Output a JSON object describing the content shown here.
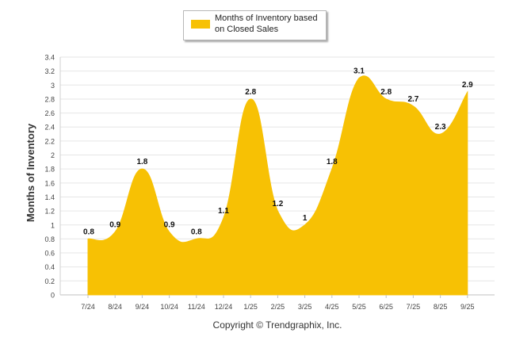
{
  "chart_data": {
    "type": "area",
    "title": "",
    "xlabel": "",
    "ylabel": "Months of Inventory",
    "categories": [
      "7/24",
      "8/24",
      "9/24",
      "10/24",
      "11/24",
      "12/24",
      "1/25",
      "2/25",
      "3/25",
      "4/25",
      "5/25",
      "6/25",
      "7/25",
      "8/25",
      "9/25"
    ],
    "series": [
      {
        "name": "Months of Inventory based on Closed Sales",
        "values": [
          0.8,
          0.9,
          1.8,
          0.9,
          0.8,
          1.1,
          2.8,
          1.2,
          1,
          1.8,
          3.1,
          2.8,
          2.7,
          2.3,
          2.9
        ],
        "labels": [
          "0.8",
          "0.9",
          "1.8",
          "0.9",
          "0.8",
          "1.1",
          "2.8",
          "1.2",
          "1",
          "1.8",
          "3.1",
          "2.8",
          "2.7",
          "2.3",
          "2.9"
        ],
        "color": "#F7C104"
      }
    ],
    "ylim": [
      0,
      3.4
    ],
    "yticks": [
      0,
      0.2,
      0.4,
      0.6,
      0.8,
      1,
      1.2,
      1.4,
      1.6,
      1.8,
      2,
      2.2,
      2.4,
      2.6,
      2.8,
      3,
      3.2,
      3.4
    ],
    "ytick_labels": [
      "0",
      "0.2",
      "0.4",
      "0.6",
      "0.8",
      "1",
      "1.2",
      "1.4",
      "1.6",
      "1.8",
      "2",
      "2.2",
      "2.4",
      "2.6",
      "2.8",
      "3",
      "3.2",
      "3.4"
    ],
    "grid": true,
    "legend_position": "top-center"
  },
  "legend": {
    "label": "Months of Inventory based on Closed Sales",
    "color": "#F7C104"
  },
  "footer": {
    "copyright": "Copyright © Trendgraphix, Inc."
  }
}
